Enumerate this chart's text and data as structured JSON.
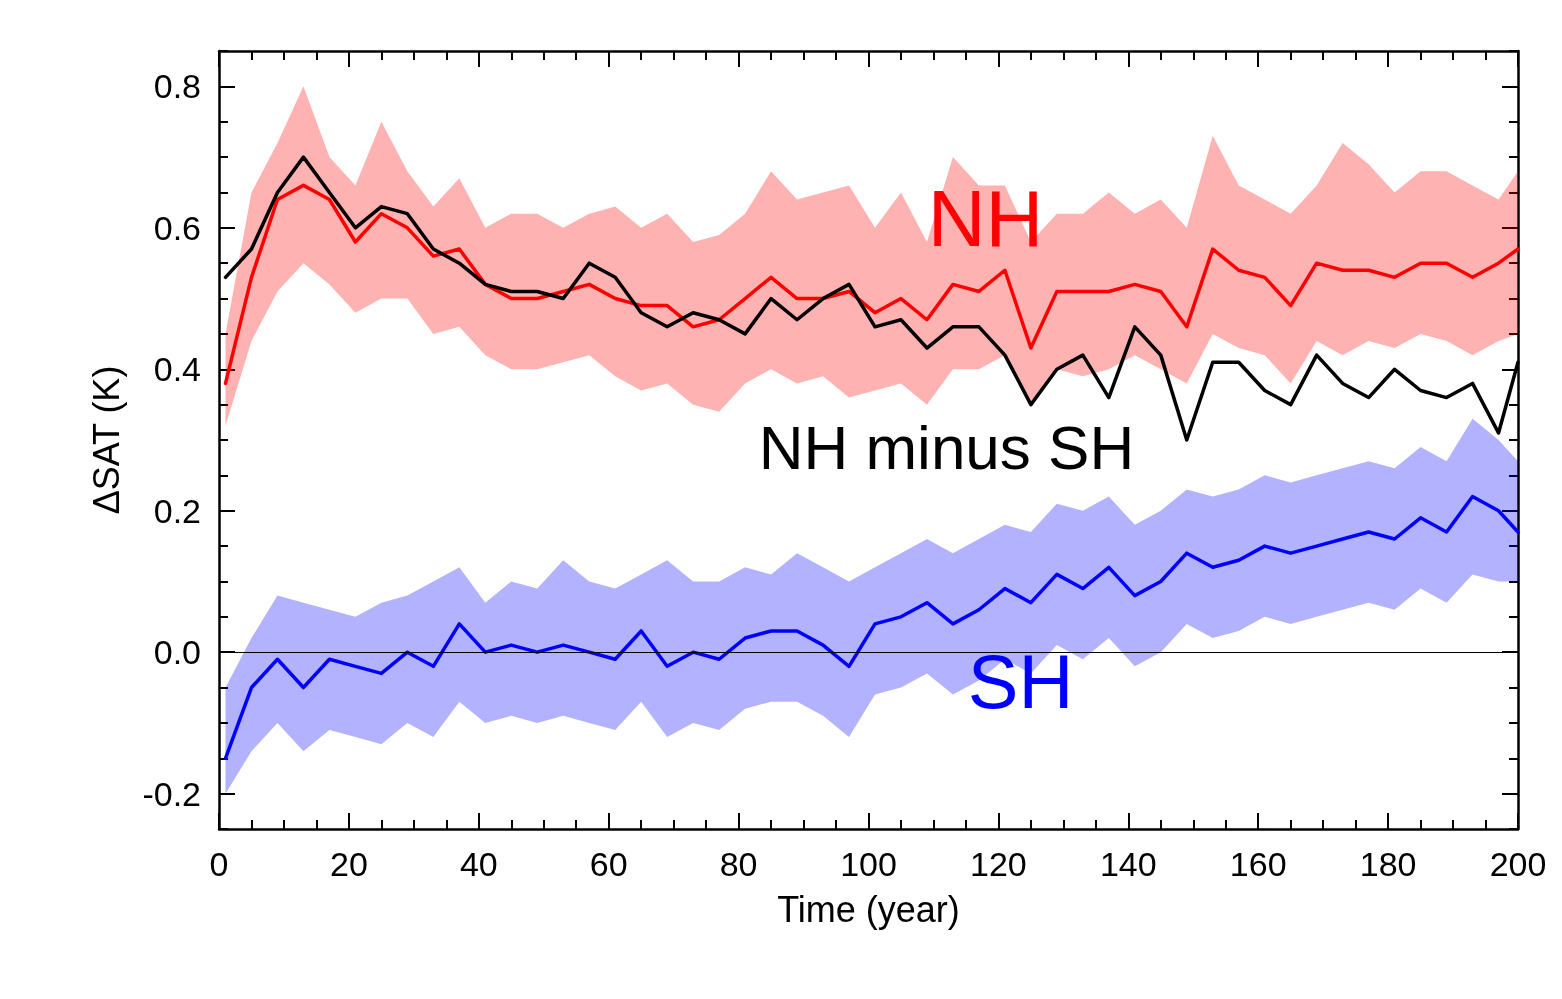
{
  "chart_data": {
    "type": "line",
    "xlabel": "Time (year)",
    "ylabel": "ΔSAT (K)",
    "x": [
      1,
      5,
      9,
      13,
      17,
      21,
      25,
      29,
      33,
      37,
      41,
      45,
      49,
      53,
      57,
      61,
      65,
      69,
      73,
      77,
      81,
      85,
      89,
      93,
      97,
      101,
      105,
      109,
      113,
      117,
      121,
      125,
      129,
      133,
      137,
      141,
      145,
      149,
      153,
      157,
      161,
      165,
      169,
      173,
      177,
      181,
      185,
      189,
      193,
      197,
      200
    ],
    "series": [
      {
        "name": "NH",
        "color": "#ff0000",
        "values": [
          0.38,
          0.53,
          0.64,
          0.66,
          0.64,
          0.58,
          0.62,
          0.6,
          0.56,
          0.57,
          0.52,
          0.5,
          0.5,
          0.51,
          0.52,
          0.5,
          0.49,
          0.49,
          0.46,
          0.47,
          0.5,
          0.53,
          0.5,
          0.5,
          0.51,
          0.48,
          0.5,
          0.47,
          0.52,
          0.51,
          0.54,
          0.43,
          0.51,
          0.51,
          0.51,
          0.52,
          0.51,
          0.46,
          0.57,
          0.54,
          0.53,
          0.49,
          0.55,
          0.54,
          0.54,
          0.53,
          0.55,
          0.55,
          0.53,
          0.55,
          0.57
        ],
        "upper": [
          0.45,
          0.65,
          0.72,
          0.8,
          0.7,
          0.66,
          0.75,
          0.68,
          0.63,
          0.67,
          0.6,
          0.62,
          0.62,
          0.6,
          0.62,
          0.63,
          0.6,
          0.62,
          0.58,
          0.59,
          0.62,
          0.68,
          0.64,
          0.65,
          0.66,
          0.6,
          0.65,
          0.58,
          0.7,
          0.66,
          0.66,
          0.58,
          0.62,
          0.62,
          0.65,
          0.62,
          0.64,
          0.6,
          0.73,
          0.66,
          0.64,
          0.62,
          0.66,
          0.72,
          0.69,
          0.65,
          0.68,
          0.68,
          0.66,
          0.64,
          0.68
        ],
        "lower": [
          0.32,
          0.44,
          0.51,
          0.55,
          0.52,
          0.48,
          0.5,
          0.5,
          0.45,
          0.46,
          0.42,
          0.4,
          0.4,
          0.41,
          0.42,
          0.39,
          0.37,
          0.38,
          0.35,
          0.34,
          0.38,
          0.4,
          0.38,
          0.39,
          0.36,
          0.37,
          0.38,
          0.35,
          0.4,
          0.4,
          0.42,
          0.35,
          0.4,
          0.39,
          0.4,
          0.42,
          0.4,
          0.38,
          0.45,
          0.43,
          0.42,
          0.38,
          0.44,
          0.42,
          0.44,
          0.43,
          0.45,
          0.44,
          0.42,
          0.44,
          0.45
        ]
      },
      {
        "name": "NH minus SH",
        "color": "#000000",
        "values": [
          0.53,
          0.57,
          0.65,
          0.7,
          0.65,
          0.6,
          0.63,
          0.62,
          0.57,
          0.55,
          0.52,
          0.51,
          0.51,
          0.5,
          0.55,
          0.53,
          0.48,
          0.46,
          0.48,
          0.47,
          0.45,
          0.5,
          0.47,
          0.5,
          0.52,
          0.46,
          0.47,
          0.43,
          0.46,
          0.46,
          0.42,
          0.35,
          0.4,
          0.42,
          0.36,
          0.46,
          0.42,
          0.3,
          0.41,
          0.41,
          0.37,
          0.35,
          0.42,
          0.38,
          0.36,
          0.4,
          0.37,
          0.36,
          0.38,
          0.31,
          0.41
        ]
      },
      {
        "name": "SH",
        "color": "#0000ff",
        "values": [
          -0.15,
          -0.05,
          -0.01,
          -0.05,
          -0.01,
          -0.02,
          -0.03,
          0.0,
          -0.02,
          0.04,
          0.0,
          0.01,
          0.0,
          0.01,
          0.0,
          -0.01,
          0.03,
          -0.02,
          0.0,
          -0.01,
          0.02,
          0.03,
          0.03,
          0.01,
          -0.02,
          0.04,
          0.05,
          0.07,
          0.04,
          0.06,
          0.09,
          0.07,
          0.11,
          0.09,
          0.12,
          0.08,
          0.1,
          0.14,
          0.12,
          0.13,
          0.15,
          0.14,
          0.15,
          0.16,
          0.17,
          0.16,
          0.19,
          0.17,
          0.22,
          0.2,
          0.17
        ],
        "upper": [
          -0.05,
          0.02,
          0.08,
          0.07,
          0.06,
          0.05,
          0.07,
          0.08,
          0.1,
          0.12,
          0.07,
          0.1,
          0.09,
          0.13,
          0.1,
          0.09,
          0.11,
          0.13,
          0.1,
          0.1,
          0.12,
          0.11,
          0.14,
          0.12,
          0.1,
          0.12,
          0.14,
          0.16,
          0.14,
          0.16,
          0.18,
          0.17,
          0.21,
          0.2,
          0.22,
          0.18,
          0.2,
          0.23,
          0.22,
          0.23,
          0.25,
          0.24,
          0.25,
          0.26,
          0.27,
          0.26,
          0.29,
          0.27,
          0.33,
          0.3,
          0.27
        ],
        "lower": [
          -0.2,
          -0.14,
          -0.1,
          -0.14,
          -0.11,
          -0.12,
          -0.13,
          -0.1,
          -0.12,
          -0.07,
          -0.1,
          -0.09,
          -0.1,
          -0.09,
          -0.1,
          -0.11,
          -0.07,
          -0.12,
          -0.1,
          -0.11,
          -0.08,
          -0.07,
          -0.07,
          -0.09,
          -0.12,
          -0.06,
          -0.05,
          -0.03,
          -0.06,
          -0.04,
          -0.01,
          -0.03,
          0.01,
          -0.01,
          0.02,
          -0.02,
          0.0,
          0.04,
          0.02,
          0.03,
          0.05,
          0.04,
          0.05,
          0.06,
          0.07,
          0.06,
          0.09,
          0.07,
          0.11,
          0.1,
          0.1
        ]
      }
    ],
    "xlim": [
      0,
      200
    ],
    "xticks": [
      0,
      {
        "value": 5,
        "label": null
      },
      {
        "value": 10,
        "label": null
      },
      {
        "value": 15,
        "label": null
      },
      20,
      {
        "value": 25,
        "label": null
      },
      {
        "value": 30,
        "label": null
      },
      {
        "value": 35,
        "label": null
      },
      40,
      {
        "value": 45,
        "label": null
      },
      {
        "value": 50,
        "label": null
      },
      {
        "value": 55,
        "label": null
      },
      60,
      {
        "value": 65,
        "label": null
      },
      {
        "value": 70,
        "label": null
      },
      {
        "value": 75,
        "label": null
      },
      80,
      {
        "value": 85,
        "label": null
      },
      {
        "value": 90,
        "label": null
      },
      {
        "value": 95,
        "label": null
      },
      100,
      {
        "value": 105,
        "label": null
      },
      {
        "value": 110,
        "label": null
      },
      {
        "value": 115,
        "label": null
      },
      120,
      {
        "value": 125,
        "label": null
      },
      {
        "value": 130,
        "label": null
      },
      {
        "value": 135,
        "label": null
      },
      140,
      {
        "value": 145,
        "label": null
      },
      {
        "value": 150,
        "label": null
      },
      {
        "value": 155,
        "label": null
      },
      160,
      {
        "value": 165,
        "label": null
      },
      {
        "value": 170,
        "label": null
      },
      {
        "value": 175,
        "label": null
      },
      180,
      {
        "value": 185,
        "label": null
      },
      {
        "value": 190,
        "label": null
      },
      {
        "value": 195,
        "label": null
      },
      200
    ],
    "ylim": [
      -0.25,
      0.85
    ],
    "yticks": [
      {
        "value": -0.25,
        "label": null
      },
      -0.2,
      {
        "value": -0.15,
        "label": null
      },
      {
        "value": -0.1,
        "label": null
      },
      {
        "value": -0.05,
        "label": null
      },
      {
        "value": 0,
        "label": "0.0"
      },
      {
        "value": 0.05,
        "label": null
      },
      {
        "value": 0.1,
        "label": null
      },
      {
        "value": 0.15,
        "label": null
      },
      0.2,
      {
        "value": 0.25,
        "label": null
      },
      {
        "value": 0.3,
        "label": null
      },
      {
        "value": 0.35,
        "label": null
      },
      0.4,
      {
        "value": 0.45,
        "label": null
      },
      {
        "value": 0.5,
        "label": null
      },
      {
        "value": 0.55,
        "label": null
      },
      0.6,
      {
        "value": 0.65,
        "label": null
      },
      {
        "value": 0.7,
        "label": null
      },
      {
        "value": 0.75,
        "label": null
      },
      0.8,
      {
        "value": 0.85,
        "label": null
      }
    ],
    "ref_lines": [
      {
        "axis": "y",
        "value": 0,
        "color": "#000000"
      }
    ],
    "grid": false,
    "legend": false,
    "marker": "none",
    "line_style": "solid"
  }
}
